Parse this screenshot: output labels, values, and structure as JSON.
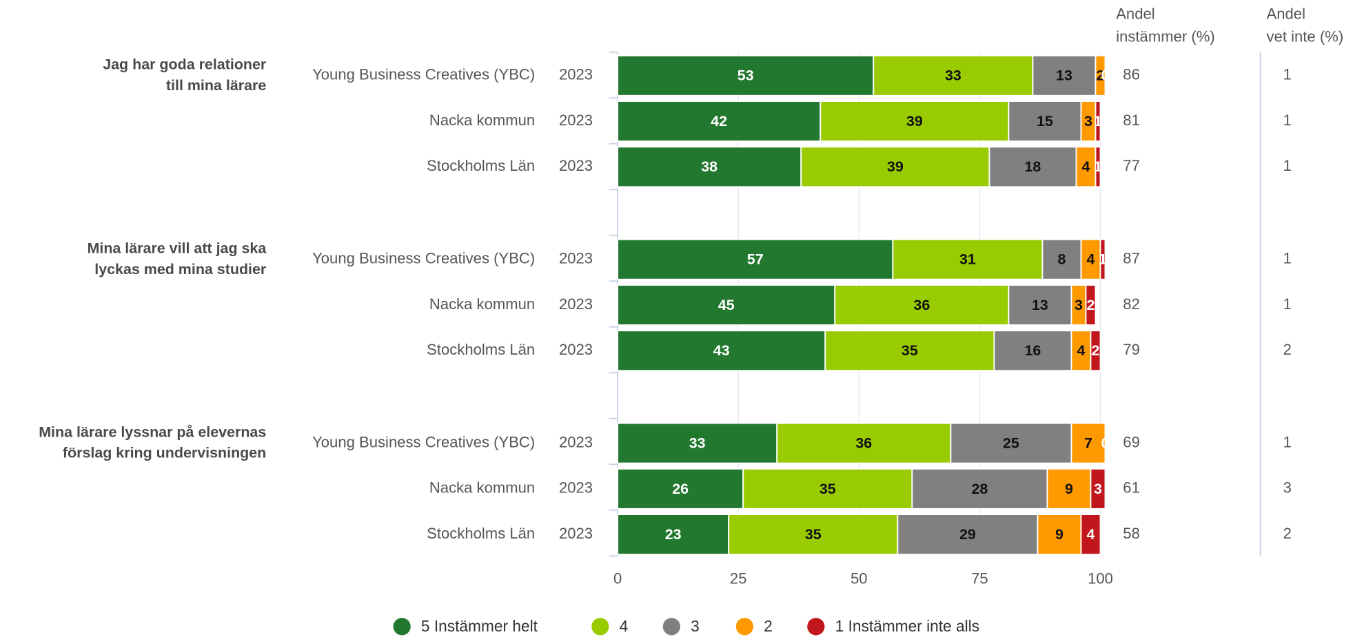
{
  "chart_data": {
    "type": "bar",
    "orientation": "horizontal",
    "stacked": true,
    "questions": [
      {
        "label": [
          "Jag har goda relationer",
          "till mina lärare"
        ]
      },
      {
        "label": [
          "Mina lärare vill att jag ska",
          "lyckas med mina studier"
        ]
      },
      {
        "label": [
          "Mina lärare lyssnar på elevernas",
          "förslag kring undervisningen"
        ]
      }
    ],
    "categories": [
      "Young Business Creatives (YBC)",
      "Nacka kommun",
      "Stockholms Län",
      "Young Business Creatives (YBC)",
      "Nacka kommun",
      "Stockholms Län",
      "Young Business Creatives (YBC)",
      "Nacka kommun",
      "Stockholms Län"
    ],
    "years": [
      "2023",
      "2023",
      "2023",
      "2023",
      "2023",
      "2023",
      "2023",
      "2023",
      "2023"
    ],
    "series": [
      {
        "name": "5 Instämmer helt",
        "color": "#23782f",
        "values": [
          53,
          42,
          38,
          57,
          45,
          43,
          33,
          26,
          23
        ]
      },
      {
        "name": "4",
        "color": "#99cc00",
        "values": [
          33,
          39,
          39,
          31,
          36,
          35,
          36,
          35,
          35
        ]
      },
      {
        "name": "3",
        "color": "#808080",
        "values": [
          13,
          15,
          18,
          8,
          13,
          16,
          25,
          28,
          29
        ]
      },
      {
        "name": "2",
        "color": "#ff9900",
        "values": [
          2,
          3,
          4,
          4,
          3,
          4,
          7,
          9,
          9
        ]
      },
      {
        "name": "1 Instämmer inte alls",
        "color": "#c0161c",
        "values": [
          0,
          1,
          1,
          1,
          2,
          2,
          0,
          3,
          4
        ]
      }
    ],
    "xlim": [
      0,
      100
    ],
    "xticks": [
      0,
      25,
      50,
      75,
      100
    ],
    "grid": true,
    "legend": "bottom",
    "agree": {
      "title": [
        "Andel",
        "instämmer (%)"
      ],
      "values": [
        86,
        81,
        77,
        87,
        82,
        79,
        69,
        61,
        58
      ]
    },
    "dont_know": {
      "title": [
        "Andel",
        "vet inte (%)"
      ],
      "values": [
        1,
        1,
        1,
        1,
        1,
        2,
        1,
        3,
        2
      ]
    }
  }
}
